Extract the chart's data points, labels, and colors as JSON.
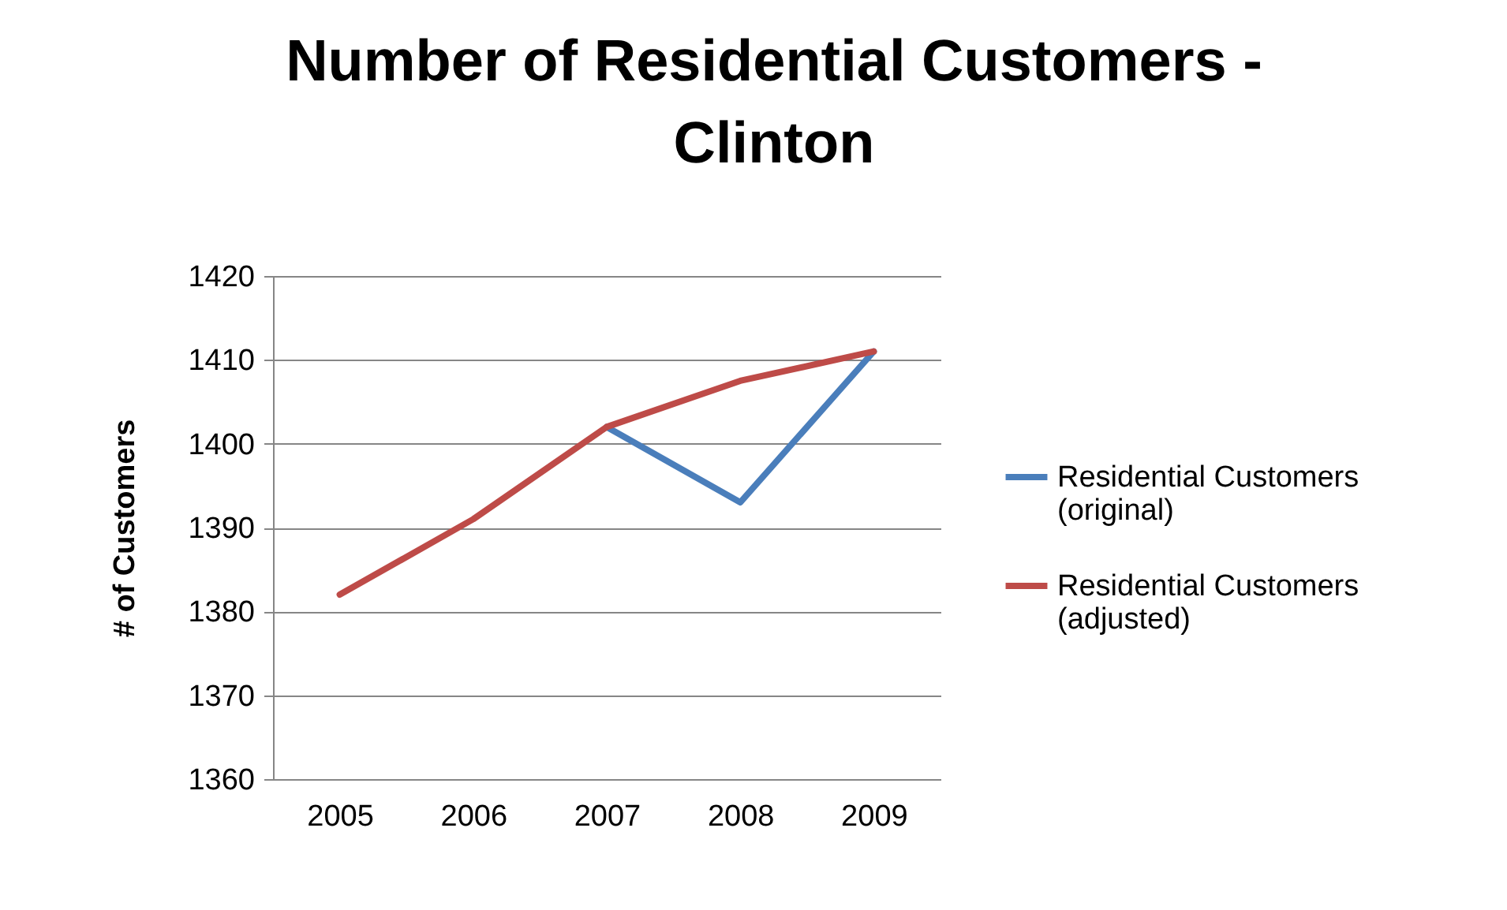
{
  "chart_data": {
    "type": "line",
    "title": "Number of Residential Customers - Clinton",
    "ylabel": "# of Customers",
    "categories": [
      "2005",
      "2006",
      "2007",
      "2008",
      "2009"
    ],
    "series": [
      {
        "name": "Residential Customers (original)",
        "color": "#4a7ebb",
        "values": [
          null,
          null,
          1402,
          1393,
          1411
        ]
      },
      {
        "name": "Residential Customers (adjusted)",
        "color": "#be4b48",
        "values": [
          1382,
          1391,
          1402,
          1407.5,
          1411
        ]
      }
    ],
    "ylim": [
      1360,
      1420
    ],
    "yticks": [
      1360,
      1370,
      1380,
      1390,
      1400,
      1410,
      1420
    ],
    "grid": "y",
    "legend": "right",
    "marker": "none",
    "line_style": "solid"
  }
}
